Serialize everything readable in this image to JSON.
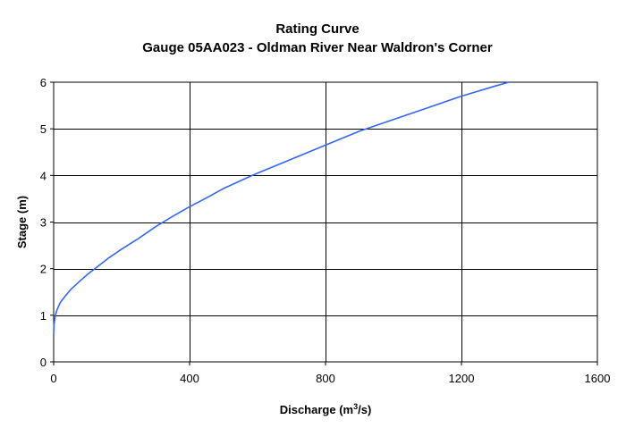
{
  "chart_data": {
    "type": "line",
    "title": "Rating Curve",
    "subtitle": "Gauge 05AA023 - Oldman River Near Waldron's Corner",
    "xlabel": {
      "prefix": "Discharge (m",
      "sup": "3",
      "suffix": "/s)"
    },
    "ylabel": "Stage (m)",
    "xlim": [
      0,
      1600
    ],
    "ylim": [
      0,
      6
    ],
    "xticks": [
      0,
      400,
      800,
      1200,
      1600
    ],
    "yticks": [
      0,
      1,
      2,
      3,
      4,
      5,
      6
    ],
    "grid": true,
    "legend": "none",
    "line_color": "#3366ff",
    "series": [
      {
        "x": [
          0,
          1,
          5,
          10,
          20,
          35,
          50,
          75,
          100,
          130,
          160,
          200,
          250,
          300,
          350,
          400,
          450,
          500,
          560,
          600,
          700,
          800,
          900,
          1000,
          1100,
          1200,
          1300,
          1340
        ],
        "y": [
          0.6,
          0.8,
          1.0,
          1.12,
          1.28,
          1.42,
          1.55,
          1.72,
          1.88,
          2.05,
          2.22,
          2.42,
          2.65,
          2.9,
          3.12,
          3.33,
          3.52,
          3.72,
          3.92,
          4.05,
          4.35,
          4.65,
          4.95,
          5.2,
          5.45,
          5.7,
          5.92,
          6.0
        ]
      }
    ]
  }
}
